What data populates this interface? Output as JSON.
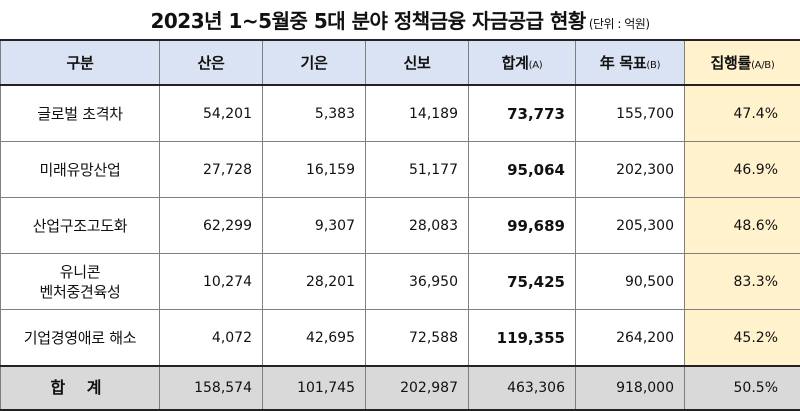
{
  "title": "2023년 1~5월중 5대 분야 정책금융 자금공급 현황",
  "unit": "(단위 : 억원)",
  "headers": {
    "category": "구분",
    "kdb": "산은",
    "ibk": "기은",
    "kodit": "신보",
    "sum": "합계",
    "sum_sub": "(A)",
    "target": "年 목표",
    "target_sub": "(B)",
    "rate": "집행률",
    "rate_sub": "(A/B)"
  },
  "rows": [
    {
      "label": [
        "글로벌  초격차"
      ],
      "kdb": "54,201",
      "ibk": "5,383",
      "kodit": "14,189",
      "sum": "73,773",
      "target": "155,700",
      "rate": "47.4%"
    },
    {
      "label": [
        "미래유망산업"
      ],
      "kdb": "27,728",
      "ibk": "16,159",
      "kodit": "51,177",
      "sum": "95,064",
      "target": "202,300",
      "rate": "46.9%"
    },
    {
      "label": [
        "산업구조고도화"
      ],
      "kdb": "62,299",
      "ibk": "9,307",
      "kodit": "28,083",
      "sum": "99,689",
      "target": "205,300",
      "rate": "48.6%"
    },
    {
      "label": [
        "유니콘",
        "벤처중견육성"
      ],
      "kdb": "10,274",
      "ibk": "28,201",
      "kodit": "36,950",
      "sum": "75,425",
      "target": "90,500",
      "rate": "83.3%"
    },
    {
      "label": [
        "기업경영애로 해소"
      ],
      "kdb": "4,072",
      "ibk": "42,695",
      "kodit": "72,588",
      "sum": "119,355",
      "target": "264,200",
      "rate": "45.2%"
    }
  ],
  "total": {
    "label": "합 계",
    "kdb": "158,574",
    "ibk": "101,745",
    "kodit": "202,987",
    "sum": "463,306",
    "target": "918,000",
    "rate": "50.5%"
  },
  "colors": {
    "header_bg": "#dae3f3",
    "rate_bg": "#fff2cc",
    "total_bg": "#d9d9d9"
  }
}
